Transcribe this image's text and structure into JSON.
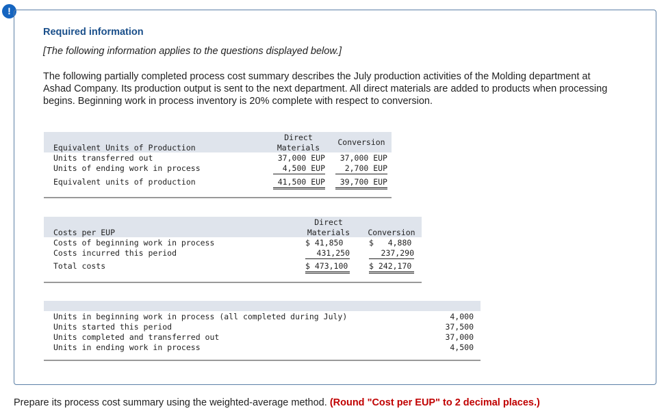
{
  "header": {
    "icon": "!",
    "title": "Required information",
    "note": "[The following information applies to the questions displayed below.]"
  },
  "intro": "The following partially completed process cost summary describes the July production activities of the Molding department at Ashad Company. Its production output is sent to the next department. All direct materials are added to products when processing begins. Beginning work in process inventory is 20% complete with respect to conversion.",
  "table1": {
    "title": "Equivalent Units of Production",
    "col1": [
      "Direct",
      "Materials"
    ],
    "col2": "Conversion",
    "rows": [
      {
        "label": "Units transferred out",
        "values": [
          "37,000 EUP",
          "37,000 EUP"
        ]
      },
      {
        "label": "Units of ending work in process",
        "values": [
          "4,500 EUP",
          "2,700 EUP"
        ]
      },
      {
        "label": "Equivalent units of production",
        "values": [
          "41,500 EUP",
          "39,700 EUP"
        ]
      }
    ]
  },
  "table2": {
    "title": "Costs per EUP",
    "col1": [
      "Direct",
      "Materials"
    ],
    "col2": "Conversion",
    "rows": [
      {
        "label": "Costs of beginning work in process",
        "values": [
          "$ 41,850",
          "$   4,880"
        ]
      },
      {
        "label": "Costs incurred this period",
        "values": [
          "431,250",
          "237,290"
        ]
      },
      {
        "label": "Total costs",
        "values": [
          "$ 473,100",
          "$ 242,170"
        ]
      }
    ]
  },
  "table3": {
    "rows": [
      {
        "label": "Units in beginning work in process (all completed during July)",
        "value": "4,000"
      },
      {
        "label": "Units started this period",
        "value": "37,500"
      },
      {
        "label": "Units completed and transferred out",
        "value": "37,000"
      },
      {
        "label": "Units in ending work in process",
        "value": "4,500"
      }
    ]
  },
  "footer": {
    "text": "Prepare its process cost summary using the weighted-average method.",
    "emphasis": "(Round \"Cost per EUP\" to 2 decimal places.)"
  }
}
